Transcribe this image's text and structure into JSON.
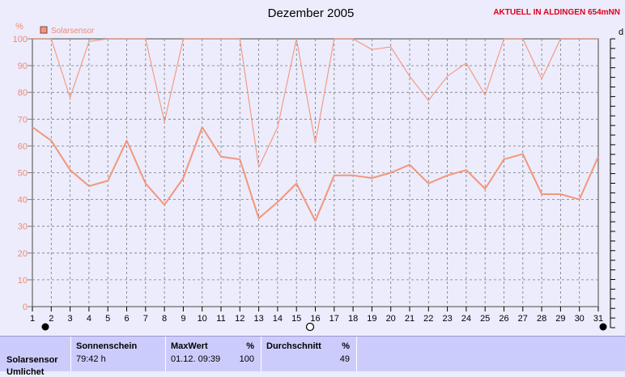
{
  "header": {
    "title": "Dezember 2005",
    "station": "AKTUELL IN ALDINGEN 654mNN",
    "right_axis_fragment": "d"
  },
  "colors": {
    "series": "#f4967a",
    "frame": "#808080",
    "background": "#ececfc",
    "table": "#ccccfc"
  },
  "chart_data": {
    "type": "line",
    "title": "Dezember 2005",
    "ylabel": "%",
    "ylim": [
      0,
      100
    ],
    "yticks": [
      0,
      10,
      20,
      30,
      40,
      50,
      60,
      70,
      80,
      90,
      100
    ],
    "xlim": [
      1,
      31
    ],
    "x": [
      1,
      2,
      3,
      4,
      5,
      6,
      7,
      8,
      9,
      10,
      11,
      12,
      13,
      14,
      15,
      16,
      17,
      18,
      19,
      20,
      21,
      22,
      23,
      24,
      25,
      26,
      27,
      28,
      29,
      30,
      31
    ],
    "legend": "top-left",
    "grid": true,
    "series": [
      {
        "name": "Solarsensor",
        "values": [
          100,
          100,
          78,
          99,
          100,
          100,
          100,
          69,
          100,
          100,
          100,
          100,
          52,
          67,
          100,
          61,
          100,
          100,
          96,
          97,
          86,
          77,
          86,
          91,
          79,
          100,
          100,
          85,
          100,
          100,
          100
        ]
      },
      {
        "name": "",
        "values": [
          67,
          62,
          51,
          45,
          47,
          62,
          46,
          38,
          48,
          67,
          56,
          55,
          33,
          39,
          46,
          32,
          49,
          49,
          48,
          50,
          53,
          46,
          49,
          51,
          44,
          55,
          57,
          42,
          42,
          40,
          56
        ]
      }
    ]
  },
  "table": {
    "row_label": "Solarsensor",
    "row_label_partial": "Umlichet",
    "columns": [
      {
        "header": "Sonnenschein",
        "value": "79:42 h"
      },
      {
        "header": "MaxWert",
        "unit": "%",
        "value": "01.12.  09:39",
        "value_right": "100"
      },
      {
        "header": "Durchschnitt",
        "unit": "%",
        "value_right": "49"
      }
    ]
  }
}
